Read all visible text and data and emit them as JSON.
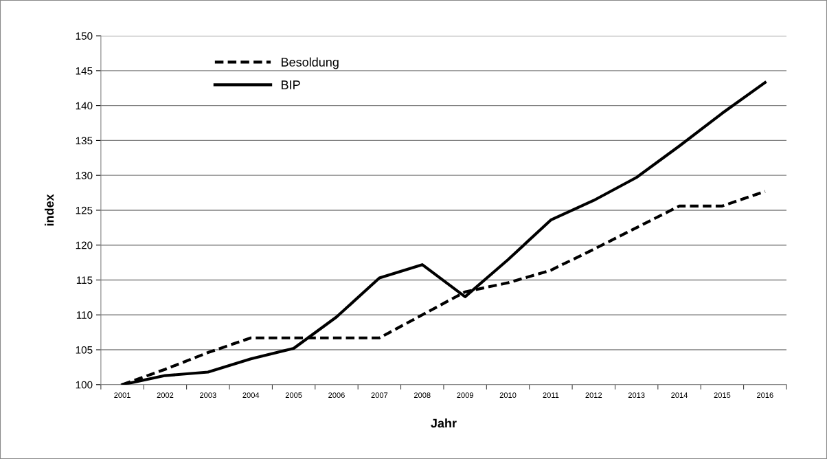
{
  "chart_data": {
    "type": "line",
    "xlabel": "Jahr",
    "ylabel": "index",
    "categories": [
      "2001",
      "2002",
      "2003",
      "2004",
      "2005",
      "2006",
      "2007",
      "2008",
      "2009",
      "2010",
      "2011",
      "2012",
      "2013",
      "2014",
      "2015",
      "2016"
    ],
    "series": [
      {
        "name": "Besoldung",
        "color": "#000000",
        "line_style": "dashed",
        "values": [
          100,
          102.2,
          104.6,
          106.7,
          106.7,
          106.7,
          106.7,
          110,
          113.3,
          114.6,
          116.4,
          119.4,
          122.5,
          125.6,
          125.6,
          127.7
        ]
      },
      {
        "name": "BIP",
        "color": "#000000",
        "line_style": "solid",
        "values": [
          100,
          101.3,
          101.8,
          103.7,
          105.2,
          109.7,
          115.3,
          117.2,
          112.6,
          117.9,
          123.6,
          126.4,
          129.7,
          134.2,
          138.9,
          143.3
        ]
      }
    ],
    "ylim": [
      100,
      150
    ],
    "yticks": [
      100,
      105,
      110,
      115,
      120,
      125,
      130,
      135,
      140,
      145,
      150
    ],
    "grid": "y",
    "legend": "top left",
    "marker": "none"
  }
}
